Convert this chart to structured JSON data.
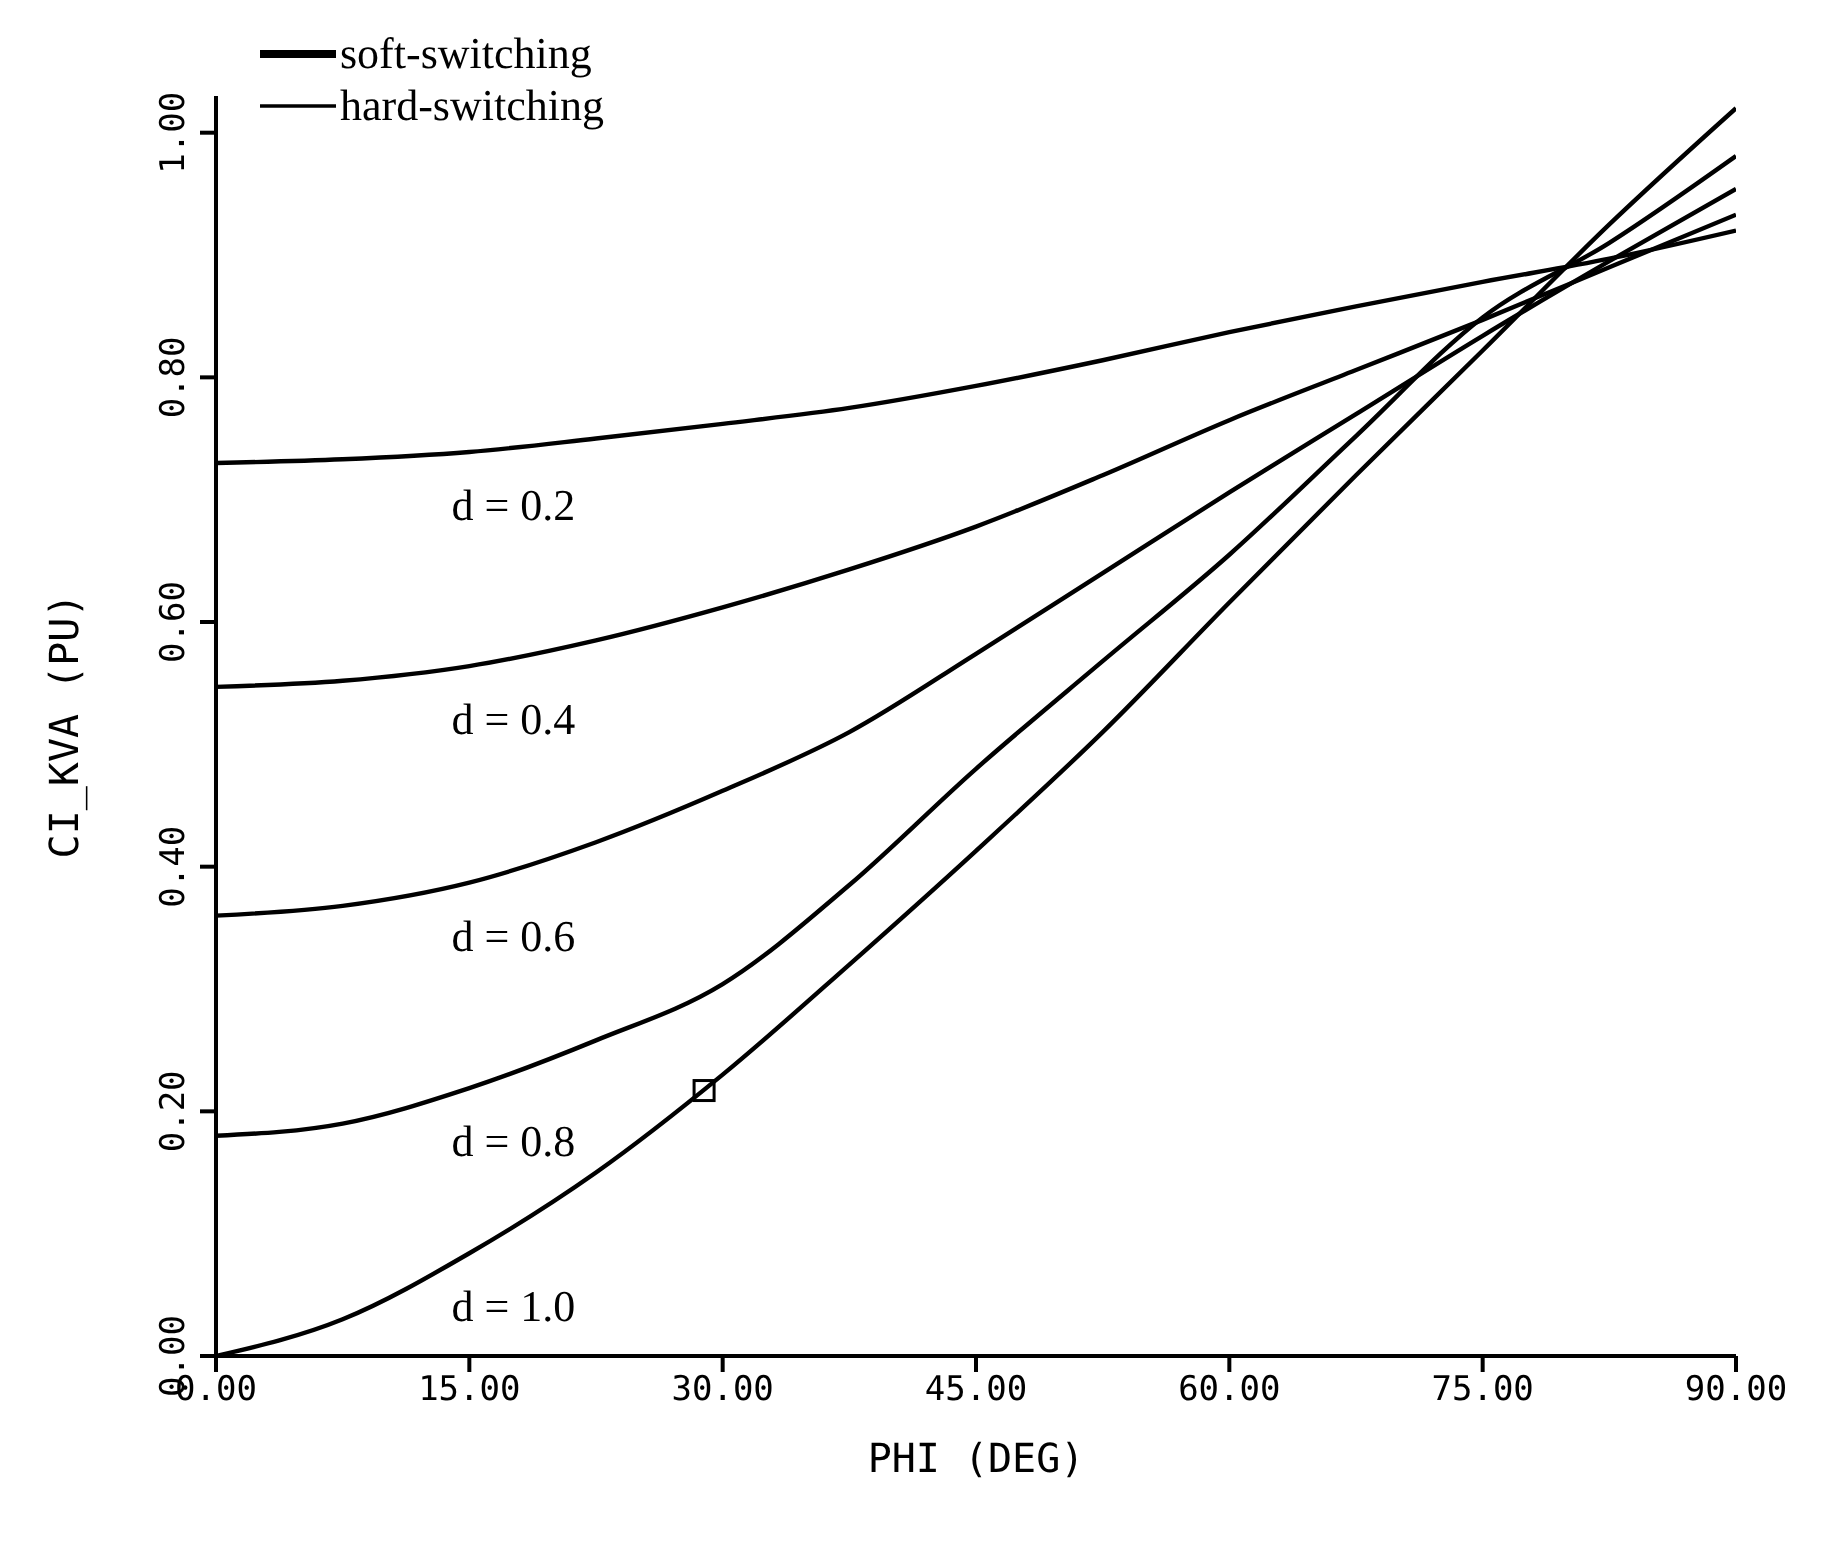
{
  "chart_data": {
    "type": "line",
    "xlabel": "PHI (DEG)",
    "ylabel": "CI_KVA (PU)",
    "x": [
      0,
      7.5,
      15,
      22.5,
      30,
      37.5,
      45,
      52.5,
      60,
      67.5,
      75,
      82.5,
      90
    ],
    "series": [
      {
        "name": "d = 0.2",
        "color": "#000000",
        "values": [
          0.73,
          0.733,
          0.739,
          0.75,
          0.762,
          0.775,
          0.793,
          0.814,
          0.837,
          0.858,
          0.878,
          0.897,
          0.92
        ]
      },
      {
        "name": "d = 0.4",
        "color": "#000000",
        "values": [
          0.547,
          0.552,
          0.564,
          0.585,
          0.612,
          0.643,
          0.678,
          0.72,
          0.765,
          0.806,
          0.847,
          0.89,
          0.933
        ]
      },
      {
        "name": "d = 0.6",
        "color": "#000000",
        "values": [
          0.36,
          0.368,
          0.387,
          0.42,
          0.462,
          0.51,
          0.574,
          0.64,
          0.706,
          0.77,
          0.834,
          0.895,
          0.954
        ]
      },
      {
        "name": "d = 0.8",
        "color": "#000000",
        "values": [
          0.18,
          0.19,
          0.219,
          0.258,
          0.304,
          0.385,
          0.48,
          0.568,
          0.655,
          0.752,
          0.849,
          0.91,
          0.981
        ]
      },
      {
        "name": "d = 1.0",
        "color": "#000000",
        "values": [
          0,
          0.03,
          0.084,
          0.15,
          0.23,
          0.32,
          0.413,
          0.51,
          0.616,
          0.72,
          0.822,
          0.925,
          1.02
        ]
      },
      {
        "type": "scatter",
        "marker": "square",
        "color": "#000000",
        "x": [
          28.9
        ],
        "values": [
          0.217
        ]
      }
    ],
    "xlim": [
      0,
      90
    ],
    "xticks": [
      {
        "value": 0,
        "label": "0.00"
      },
      {
        "value": 15,
        "label": "15.00"
      },
      {
        "value": 30,
        "label": "30.00"
      },
      {
        "value": 45,
        "label": "45.00"
      },
      {
        "value": 60,
        "label": "60.00"
      },
      {
        "value": 75,
        "label": "75.00"
      },
      {
        "value": 90,
        "label": "90.00"
      }
    ],
    "ylim": [
      0,
      1.03
    ],
    "yticks": [
      {
        "value": 0,
        "label": "0.00"
      },
      {
        "value": 0.2,
        "label": "0.20"
      },
      {
        "value": 0.4,
        "label": "0.40"
      },
      {
        "value": 0.6,
        "label": "0.60"
      },
      {
        "value": 0.8,
        "label": "0.80"
      },
      {
        "value": 1,
        "label": "1.00"
      }
    ],
    "grid": false,
    "annotations": [
      "soft-switching",
      "hard-switching"
    ]
  }
}
